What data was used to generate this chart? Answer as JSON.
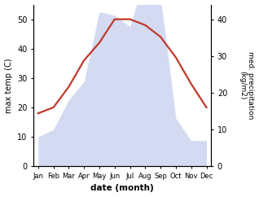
{
  "months": [
    "Jan",
    "Feb",
    "Mar",
    "Apr",
    "May",
    "Jun",
    "Jul",
    "Aug",
    "Sep",
    "Oct",
    "Nov",
    "Dec"
  ],
  "temperature": [
    18,
    20,
    27,
    36,
    42,
    50,
    50,
    48,
    44,
    37,
    28,
    20
  ],
  "precipitation": [
    8,
    10,
    18,
    23,
    42,
    41,
    38,
    52,
    46,
    13,
    7,
    7
  ],
  "temp_color": "#c0392b",
  "precip_color": "#b0bce8",
  "left_ylim": [
    0,
    55
  ],
  "right_ylim": [
    0,
    44
  ],
  "left_yticks": [
    0,
    10,
    20,
    30,
    40,
    50
  ],
  "right_yticks": [
    0,
    10,
    20,
    30,
    40
  ],
  "ylabel_left": "max temp (C)",
  "ylabel_right": "med. precipitation\n(kg/m2)",
  "xlabel": "date (month)",
  "figsize": [
    3.18,
    2.42
  ],
  "dpi": 100
}
